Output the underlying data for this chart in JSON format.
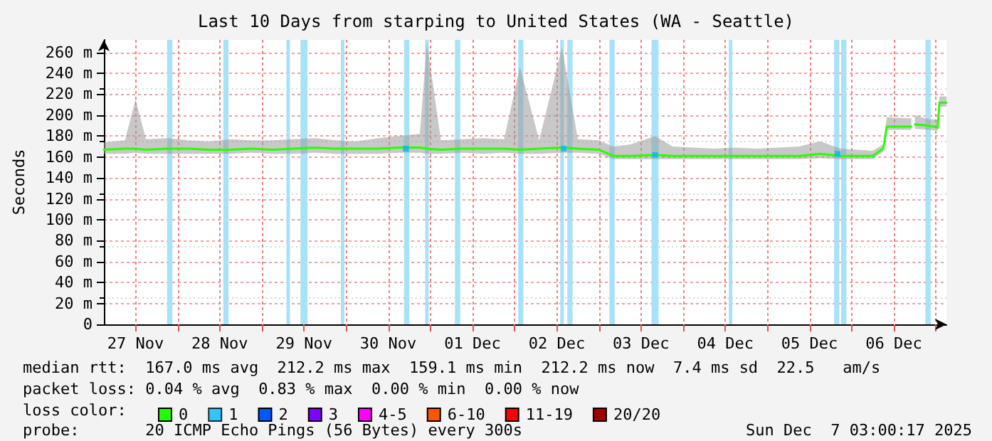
{
  "chart_data": {
    "type": "line",
    "title": "Last 10 Days from starping to United States (WA - Seattle)",
    "ylabel": "Seconds",
    "legend_title": "loss color:",
    "legend": "bottom left",
    "grid": true,
    "marker": "none",
    "xlim": [
      "2025-11-27T03:00",
      "2025-12-07T03:00"
    ],
    "xticks": [
      {
        "value": "2025-11-27T12:00",
        "label": "27 Nov"
      },
      {
        "value": "2025-11-28T00:00",
        "label": null
      },
      {
        "value": "2025-11-28T12:00",
        "label": "28 Nov"
      },
      {
        "value": "2025-11-29T00:00",
        "label": null
      },
      {
        "value": "2025-11-29T12:00",
        "label": "29 Nov"
      },
      {
        "value": "2025-11-30T00:00",
        "label": null
      },
      {
        "value": "2025-11-30T12:00",
        "label": "30 Nov"
      },
      {
        "value": "2025-12-01T00:00",
        "label": null
      },
      {
        "value": "2025-12-01T12:00",
        "label": "01 Dec"
      },
      {
        "value": "2025-12-02T00:00",
        "label": null
      },
      {
        "value": "2025-12-02T12:00",
        "label": "02 Dec"
      },
      {
        "value": "2025-12-03T00:00",
        "label": null
      },
      {
        "value": "2025-12-03T12:00",
        "label": "03 Dec"
      },
      {
        "value": "2025-12-04T00:00",
        "label": null
      },
      {
        "value": "2025-12-04T12:00",
        "label": "04 Dec"
      },
      {
        "value": "2025-12-05T00:00",
        "label": null
      },
      {
        "value": "2025-12-05T12:00",
        "label": "05 Dec"
      },
      {
        "value": "2025-12-06T00:00",
        "label": null
      },
      {
        "value": "2025-12-06T12:00",
        "label": "06 Dec"
      },
      {
        "value": "2025-12-07T00:00",
        "label": null
      }
    ],
    "ylim": [
      0,
      272
    ],
    "yticks": [
      0,
      {
        "value": 20,
        "label": "20 m"
      },
      {
        "value": 40,
        "label": "40 m"
      },
      {
        "value": 60,
        "label": "60 m"
      },
      {
        "value": 80,
        "label": "80 m"
      },
      {
        "value": 100,
        "label": "100 m"
      },
      {
        "value": 120,
        "label": "120 m"
      },
      {
        "value": 140,
        "label": "140 m"
      },
      {
        "value": 160,
        "label": "160 m"
      },
      {
        "value": 180,
        "label": "180 m"
      },
      {
        "value": 200,
        "label": "200 m"
      },
      {
        "value": 220,
        "label": "220 m"
      },
      {
        "value": 240,
        "label": "240 m"
      },
      {
        "value": 260,
        "label": "260 m"
      }
    ],
    "x": [
      "2025-11-27T03:00",
      "2025-11-27T09:00",
      "2025-11-27T12:00",
      "2025-11-27T15:00",
      "2025-11-27T21:00",
      "2025-11-28T03:00",
      "2025-11-28T09:00",
      "2025-11-28T15:00",
      "2025-11-28T21:00",
      "2025-11-29T03:00",
      "2025-11-29T09:00",
      "2025-11-29T15:00",
      "2025-11-29T21:00",
      "2025-11-30T03:00",
      "2025-11-30T09:00",
      "2025-11-30T15:00",
      "2025-11-30T21:00",
      "2025-11-30T23:00",
      "2025-12-01T03:00",
      "2025-12-01T09:00",
      "2025-12-01T15:00",
      "2025-12-01T21:00",
      "2025-12-02T01:30",
      "2025-12-02T07:00",
      "2025-12-02T13:30",
      "2025-12-02T18:00",
      "2025-12-03T00:00",
      "2025-12-03T04:00",
      "2025-12-03T09:00",
      "2025-12-03T16:00",
      "2025-12-03T21:00",
      "2025-12-04T03:00",
      "2025-12-04T09:00",
      "2025-12-04T15:00",
      "2025-12-04T21:00",
      "2025-12-05T03:00",
      "2025-12-05T09:00",
      "2025-12-05T15:00",
      "2025-12-05T21:00",
      "2025-12-06T06:00",
      "2025-12-06T09:00",
      "2025-12-06T10:00",
      "2025-12-06T16:00",
      "2025-12-06T17:00",
      "2025-12-06T17:30",
      "2025-12-06T18:00",
      "2025-12-06T22:00",
      "2025-12-07T00:30",
      "2025-12-07T01:00",
      "2025-12-07T03:00"
    ],
    "series": [
      {
        "name": "0",
        "color": "#26ff00",
        "values": [
          167,
          168,
          168,
          167,
          168,
          168,
          167,
          167,
          168,
          167,
          168,
          169,
          168,
          168,
          168,
          169,
          169,
          168,
          167,
          168,
          168,
          168,
          167,
          168,
          169,
          168,
          167,
          161,
          161,
          162,
          161,
          161,
          161,
          161,
          161,
          161,
          161,
          163,
          161,
          161,
          168,
          189,
          189,
          189,
          null,
          191,
          190,
          188,
          212,
          212
        ],
        "lower": [
          163,
          163,
          164,
          163,
          163,
          163,
          163,
          163,
          164,
          163,
          163,
          164,
          163,
          163,
          163,
          164,
          164,
          163,
          163,
          164,
          163,
          164,
          163,
          163,
          164,
          164,
          163,
          158,
          158,
          158,
          158,
          158,
          158,
          158,
          158,
          158,
          158,
          159,
          158,
          158,
          165,
          186,
          186,
          186,
          null,
          187,
          186,
          185,
          208,
          208
        ],
        "upper": [
          174,
          176,
          215,
          177,
          178,
          176,
          175,
          177,
          176,
          176,
          177,
          178,
          176,
          175,
          178,
          180,
          182,
          270,
          176,
          177,
          178,
          177,
          246,
          176,
          265,
          177,
          176,
          170,
          172,
          180,
          170,
          169,
          168,
          169,
          168,
          169,
          170,
          175,
          168,
          166,
          172,
          198,
          197,
          197,
          null,
          200,
          196,
          196,
          218,
          218
        ]
      },
      {
        "name": "1",
        "color": "#00b8ff",
        "type": "scatter",
        "marker": "square",
        "x": [
          "2025-11-30T17:00",
          "2025-12-02T14:00",
          "2025-12-03T16:00",
          "2025-12-05T20:00"
        ],
        "values": [
          168,
          168,
          162,
          163
        ]
      },
      {
        "name": "2",
        "color": "#0059ff",
        "values": [
          null,
          null,
          null,
          null,
          null,
          null,
          null,
          null,
          null,
          null,
          null,
          null,
          null,
          null,
          null,
          null,
          null,
          null,
          null,
          null,
          null,
          null,
          null,
          null,
          null,
          null,
          null,
          null,
          null,
          null,
          null,
          null,
          null,
          null,
          null,
          null,
          null,
          null,
          null,
          null,
          null,
          null,
          null,
          null,
          null,
          null,
          null,
          null,
          null,
          null
        ]
      },
      {
        "name": "3",
        "color": "#7e00ff",
        "values": [
          null,
          null,
          null,
          null,
          null,
          null,
          null,
          null,
          null,
          null,
          null,
          null,
          null,
          null,
          null,
          null,
          null,
          null,
          null,
          null,
          null,
          null,
          null,
          null,
          null,
          null,
          null,
          null,
          null,
          null,
          null,
          null,
          null,
          null,
          null,
          null,
          null,
          null,
          null,
          null,
          null,
          null,
          null,
          null,
          null,
          null,
          null,
          null,
          null,
          null
        ]
      },
      {
        "name": "4-5",
        "color": "#ff00ff",
        "values": [
          null,
          null,
          null,
          null,
          null,
          null,
          null,
          null,
          null,
          null,
          null,
          null,
          null,
          null,
          null,
          null,
          null,
          null,
          null,
          null,
          null,
          null,
          null,
          null,
          null,
          null,
          null,
          null,
          null,
          null,
          null,
          null,
          null,
          null,
          null,
          null,
          null,
          null,
          null,
          null,
          null,
          null,
          null,
          null,
          null,
          null,
          null,
          null,
          null,
          null
        ]
      },
      {
        "name": "6-10",
        "color": "#ff5500",
        "values": [
          null,
          null,
          null,
          null,
          null,
          null,
          null,
          null,
          null,
          null,
          null,
          null,
          null,
          null,
          null,
          null,
          null,
          null,
          null,
          null,
          null,
          null,
          null,
          null,
          null,
          null,
          null,
          null,
          null,
          null,
          null,
          null,
          null,
          null,
          null,
          null,
          null,
          null,
          null,
          null,
          null,
          null,
          null,
          null,
          null,
          null,
          null,
          null,
          null,
          null
        ]
      },
      {
        "name": "11-19",
        "color": "#ff0000",
        "values": [
          null,
          null,
          null,
          null,
          null,
          null,
          null,
          null,
          null,
          null,
          null,
          null,
          null,
          null,
          null,
          null,
          null,
          null,
          null,
          null,
          null,
          null,
          null,
          null,
          null,
          null,
          null,
          null,
          null,
          null,
          null,
          null,
          null,
          null,
          null,
          null,
          null,
          null,
          null,
          null,
          null,
          null,
          null,
          null,
          null,
          null,
          null,
          null,
          null,
          null
        ]
      },
      {
        "name": "20/20",
        "color": "#a10000",
        "values": [
          null,
          null,
          null,
          null,
          null,
          null,
          null,
          null,
          null,
          null,
          null,
          null,
          null,
          null,
          null,
          null,
          null,
          null,
          null,
          null,
          null,
          null,
          null,
          null,
          null,
          null,
          null,
          null,
          null,
          null,
          null,
          null,
          null,
          null,
          null,
          null,
          null,
          null,
          null,
          null,
          null,
          null,
          null,
          null,
          null,
          null,
          null,
          null,
          null,
          null
        ]
      }
    ],
    "bands": [
      {
        "axis": "x",
        "from": "2025-11-27T21:00",
        "to": "2025-11-27T22:30",
        "color": "#a8e2f8"
      },
      {
        "axis": "x",
        "from": "2025-11-28T13:00",
        "to": "2025-11-28T14:30",
        "color": "#a8e2f8"
      },
      {
        "axis": "x",
        "from": "2025-11-29T07:00",
        "to": "2025-11-29T08:00",
        "color": "#a8e2f8"
      },
      {
        "axis": "x",
        "from": "2025-11-29T11:00",
        "to": "2025-11-29T13:00",
        "color": "#a8e2f8"
      },
      {
        "axis": "x",
        "from": "2025-11-29T22:30",
        "to": "2025-11-29T23:30",
        "color": "#a8e2f8"
      },
      {
        "axis": "x",
        "from": "2025-11-30T16:30",
        "to": "2025-11-30T18:00",
        "color": "#a8e2f8"
      },
      {
        "axis": "x",
        "from": "2025-11-30T22:30",
        "to": "2025-11-30T23:30",
        "color": "#a8e2f8"
      },
      {
        "axis": "x",
        "from": "2025-12-01T07:00",
        "to": "2025-12-01T08:30",
        "color": "#a8e2f8"
      },
      {
        "axis": "x",
        "from": "2025-12-02T01:00",
        "to": "2025-12-02T02:30",
        "color": "#a8e2f8"
      },
      {
        "axis": "x",
        "from": "2025-12-02T13:00",
        "to": "2025-12-02T14:00",
        "color": "#a8e2f8"
      },
      {
        "axis": "x",
        "from": "2025-12-02T15:00",
        "to": "2025-12-02T16:30",
        "color": "#a8e2f8"
      },
      {
        "axis": "x",
        "from": "2025-12-03T03:00",
        "to": "2025-12-03T04:30",
        "color": "#a8e2f8"
      },
      {
        "axis": "x",
        "from": "2025-12-03T15:00",
        "to": "2025-12-03T17:00",
        "color": "#a8e2f8"
      },
      {
        "axis": "x",
        "from": "2025-12-04T13:00",
        "to": "2025-12-04T14:00",
        "color": "#a8e2f8"
      },
      {
        "axis": "x",
        "from": "2025-12-05T19:00",
        "to": "2025-12-05T20:30",
        "color": "#a8e2f8"
      },
      {
        "axis": "x",
        "from": "2025-12-05T21:00",
        "to": "2025-12-05T22:30",
        "color": "#a8e2f8"
      },
      {
        "axis": "x",
        "from": "2025-12-06T21:00",
        "to": "2025-12-06T22:30",
        "color": "#a8e2f8"
      }
    ],
    "annotations": [
      "median rtt:  167.0 ms avg  212.2 ms max  159.1 ms min  212.2 ms now  7.4 ms sd  22.5   am/s",
      "packet loss: 0.04 % avg  0.83 % max  0.00 % min  0.00 % now",
      "probe:       20 ICMP Echo Pings (56 Bytes) every 300s",
      "Sun Dec  7 03:00:17 2025"
    ]
  }
}
